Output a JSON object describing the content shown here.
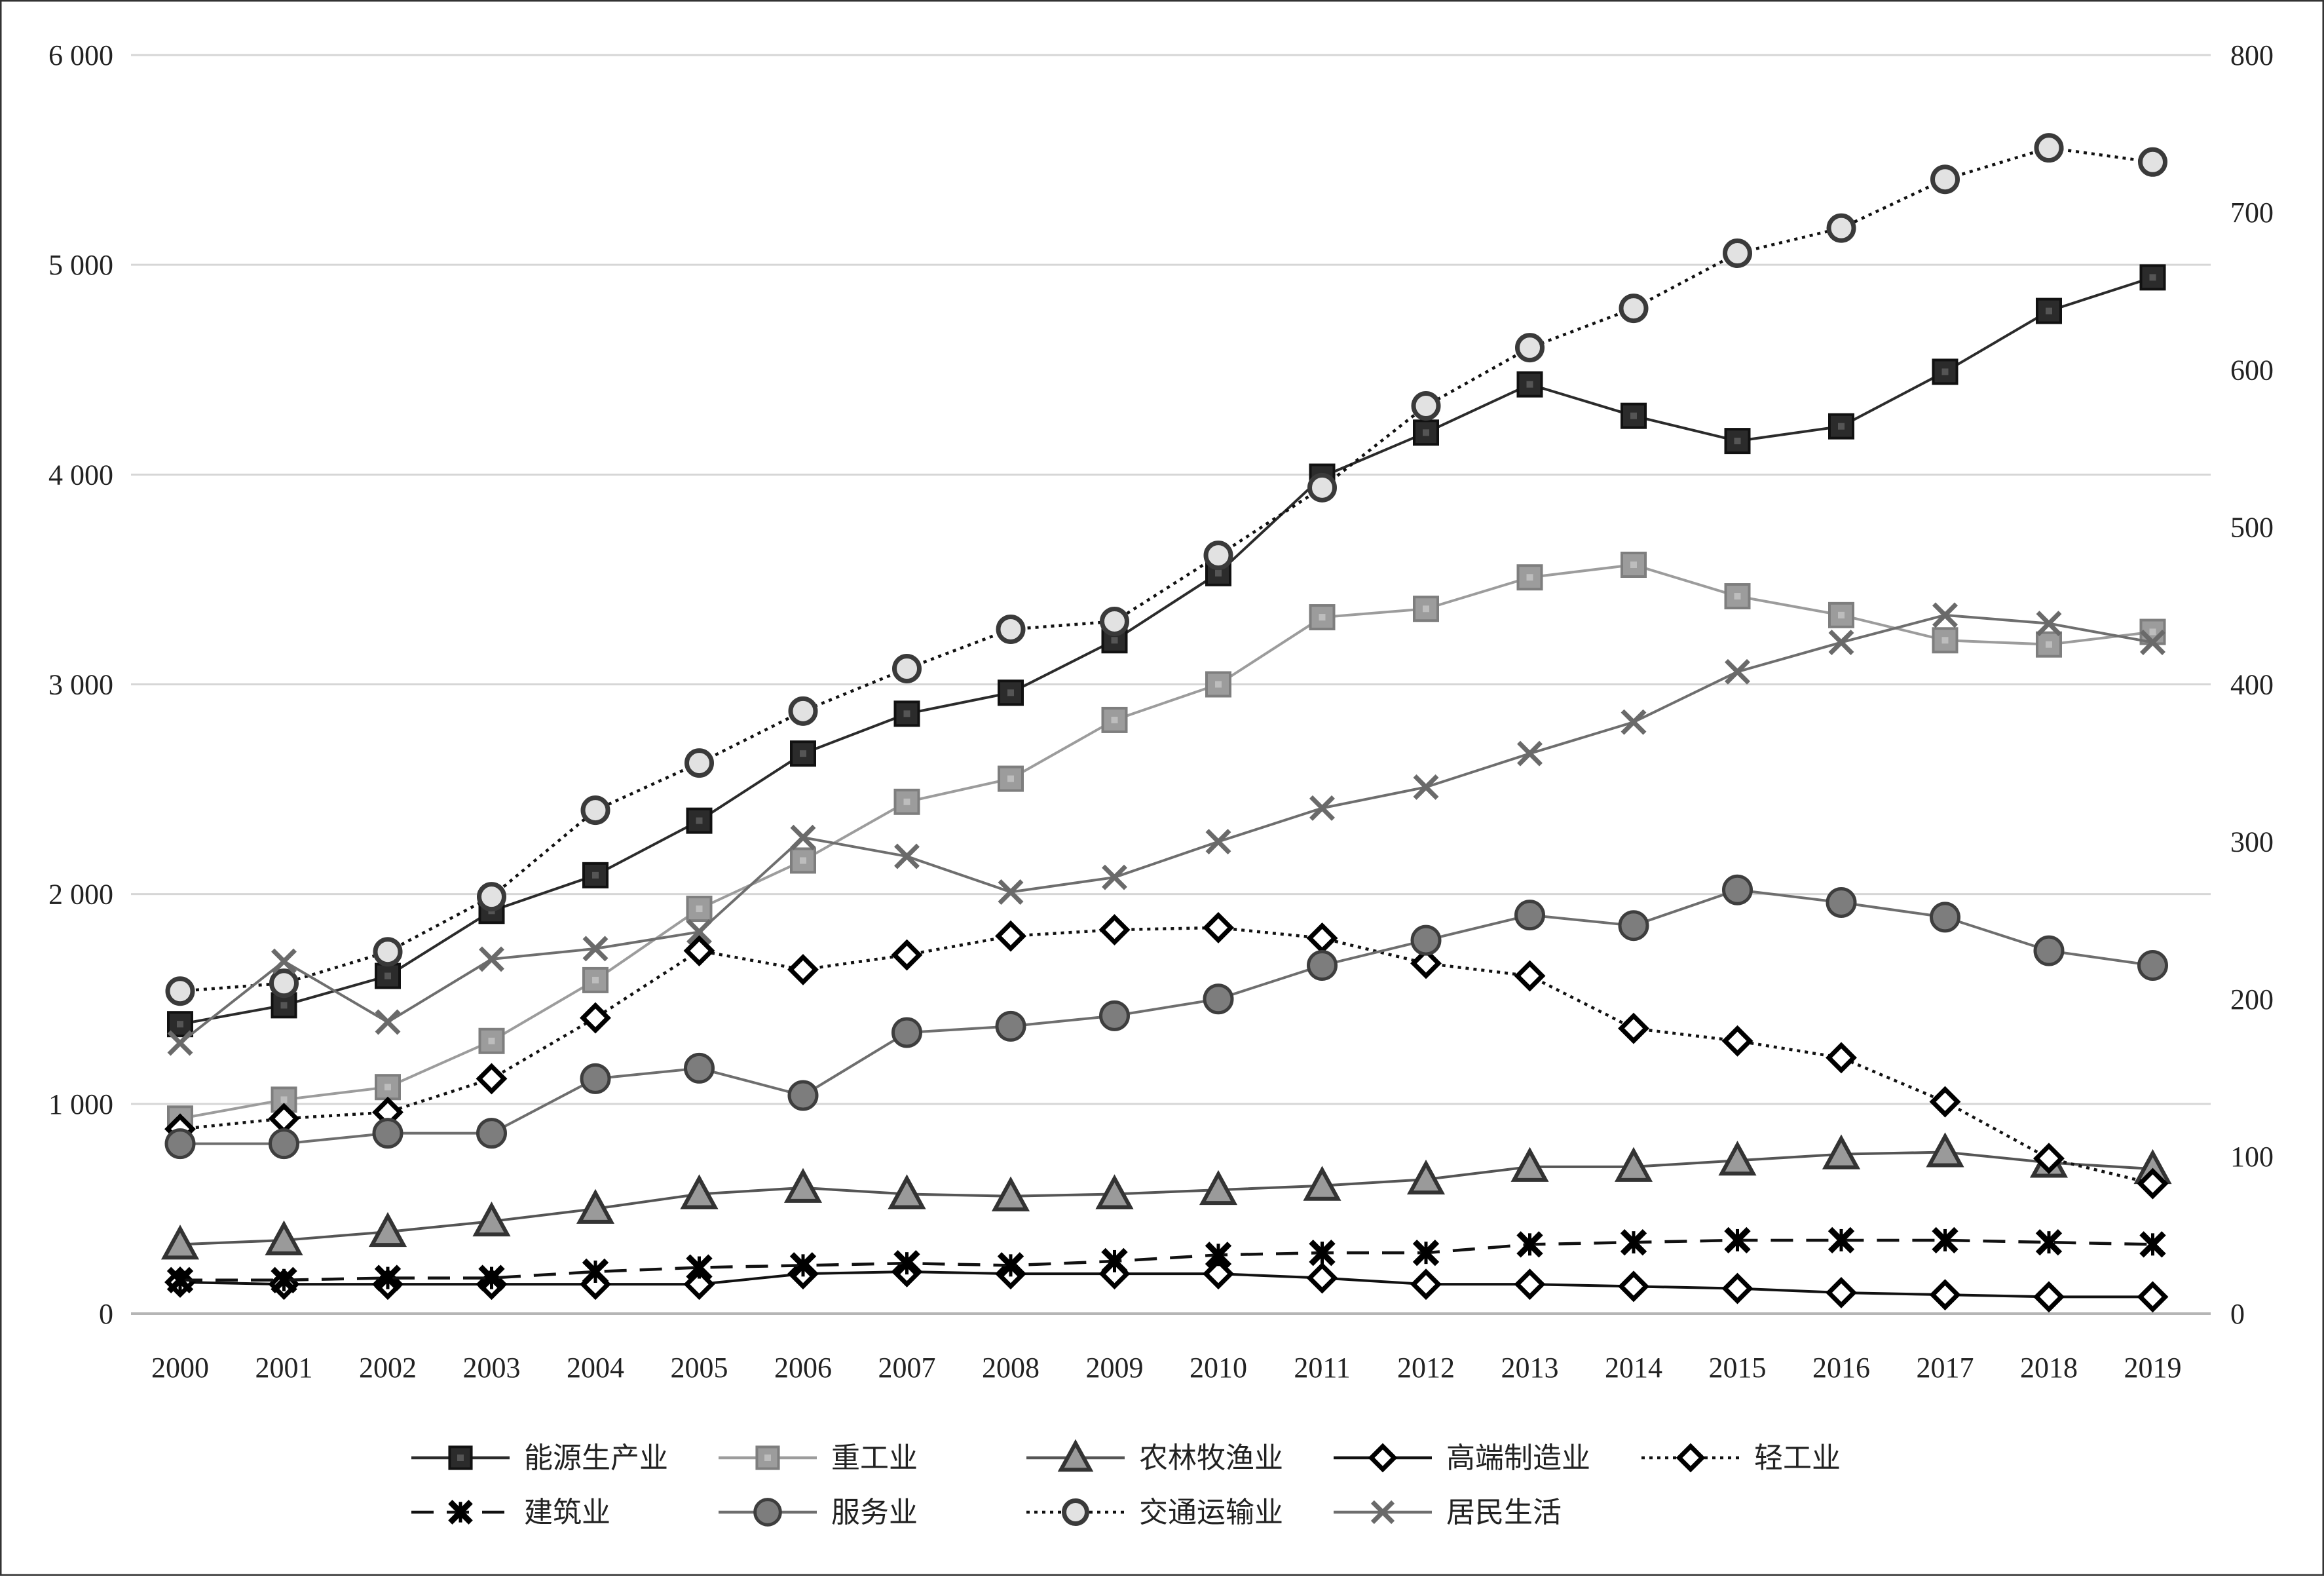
{
  "chart_data": {
    "type": "line",
    "title": "",
    "xlabel": "",
    "ylabel": "",
    "x": [
      "2000",
      "2001",
      "2002",
      "2003",
      "2004",
      "2005",
      "2006",
      "2007",
      "2008",
      "2009",
      "2010",
      "2011",
      "2012",
      "2013",
      "2014",
      "2015",
      "2016",
      "2017",
      "2018",
      "2019"
    ],
    "ylim_left": [
      0,
      6000
    ],
    "ylim_right": [
      0,
      800
    ],
    "yticks_left": [
      0,
      1000,
      2000,
      3000,
      4000,
      5000,
      6000
    ],
    "ytick_labels_left": [
      "0",
      "1 000",
      "2 000",
      "3 000",
      "4 000",
      "5 000",
      "6 000"
    ],
    "yticks_right": [
      0,
      100,
      200,
      300,
      400,
      500,
      600,
      700,
      800
    ],
    "ytick_labels_right": [
      "0",
      "100",
      "200",
      "300",
      "400",
      "500",
      "600",
      "700",
      "800"
    ],
    "grid": "horizontal",
    "legend_position": "bottom",
    "series": [
      {
        "name": "能源生产业",
        "axis": "left",
        "color": "#2b2b2b",
        "marker": "square",
        "line": "solid",
        "values": [
          1380,
          1470,
          1610,
          1920,
          2090,
          2350,
          2670,
          2860,
          2960,
          3210,
          3530,
          3990,
          4200,
          4430,
          4280,
          4160,
          4230,
          4490,
          4780,
          4940
        ]
      },
      {
        "name": "重工业",
        "axis": "left",
        "color": "#9c9c9c",
        "marker": "square",
        "line": "solid",
        "values": [
          930,
          1020,
          1080,
          1300,
          1590,
          1930,
          2160,
          2440,
          2550,
          2830,
          3000,
          3320,
          3360,
          3510,
          3570,
          3420,
          3330,
          3210,
          3190,
          3250
        ]
      },
      {
        "name": "农林牧渔业",
        "axis": "left",
        "color": "#555555",
        "marker": "triangle",
        "line": "solid",
        "values": [
          330,
          350,
          390,
          440,
          500,
          570,
          600,
          570,
          560,
          570,
          590,
          610,
          640,
          700,
          700,
          730,
          760,
          770,
          720,
          690
        ]
      },
      {
        "name": "高端制造业",
        "axis": "left",
        "color": "#111111",
        "marker": "diamond",
        "line": "solid",
        "values": [
          150,
          140,
          140,
          140,
          140,
          140,
          190,
          200,
          190,
          190,
          190,
          170,
          140,
          140,
          130,
          120,
          100,
          90,
          80,
          80
        ]
      },
      {
        "name": "轻工业",
        "axis": "left",
        "color": "#111111",
        "marker": "diamond",
        "line": "dotted",
        "values": [
          880,
          930,
          960,
          1120,
          1410,
          1730,
          1640,
          1710,
          1800,
          1830,
          1840,
          1790,
          1670,
          1610,
          1360,
          1300,
          1220,
          1010,
          740,
          620
        ]
      },
      {
        "name": "建筑业",
        "axis": "left",
        "color": "#111111",
        "marker": "x",
        "line": "dashed",
        "values": [
          160,
          160,
          170,
          170,
          200,
          220,
          230,
          240,
          230,
          250,
          280,
          290,
          290,
          330,
          340,
          350,
          350,
          350,
          340,
          330
        ]
      },
      {
        "name": "服务业",
        "axis": "left",
        "color": "#6e6e6e",
        "marker": "circle",
        "line": "solid",
        "values": [
          810,
          810,
          860,
          860,
          1120,
          1170,
          1040,
          1340,
          1370,
          1420,
          1500,
          1660,
          1780,
          1900,
          1850,
          2020,
          1960,
          1890,
          1730,
          1660
        ]
      },
      {
        "name": "交通运输业",
        "axis": "right",
        "color": "#444444",
        "marker": "circle-open",
        "line": "dotted",
        "values": [
          205,
          210,
          230,
          265,
          320,
          350,
          383,
          410,
          435,
          440,
          482,
          525,
          577,
          614,
          639,
          674,
          690,
          721,
          741,
          732
        ]
      },
      {
        "name": "居民生活",
        "axis": "left",
        "color": "#6e6e6e",
        "marker": "x",
        "line": "solid",
        "values": [
          1290,
          1680,
          1390,
          1690,
          1740,
          1820,
          2270,
          2180,
          2010,
          2080,
          2250,
          2410,
          2510,
          2670,
          2820,
          3060,
          3200,
          3330,
          3290,
          3200
        ]
      }
    ]
  }
}
